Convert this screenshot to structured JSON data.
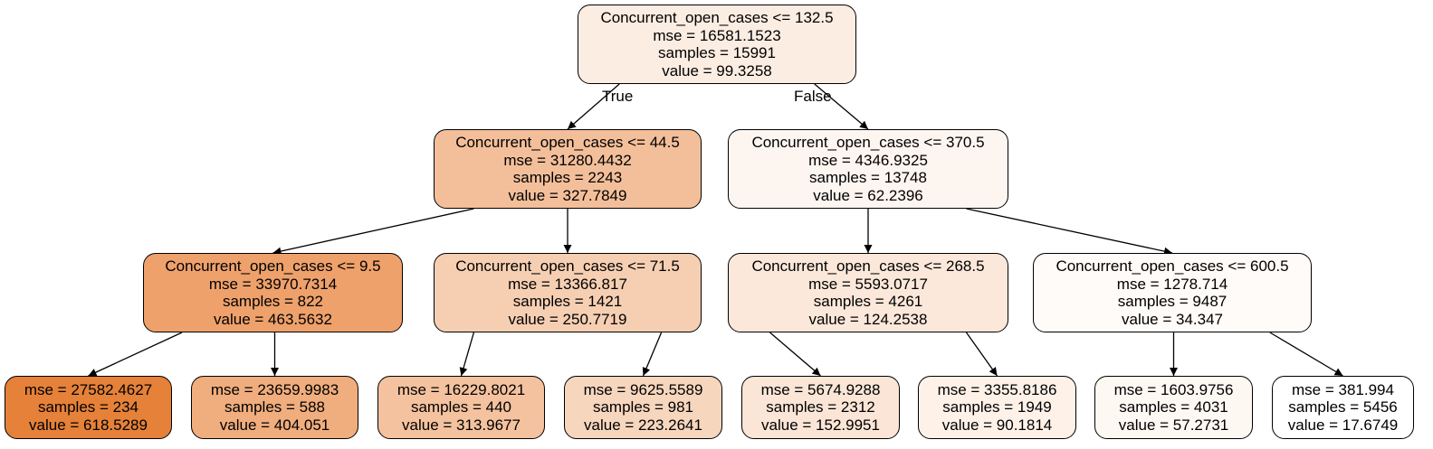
{
  "nodes": [
    {
      "id": "n0",
      "lines": [
        "Concurrent_open_cases <= 132.5",
        "mse = 16581.1523",
        "samples = 15991",
        "value = 99.3258"
      ],
      "fill": "#fcede3"
    },
    {
      "id": "n1",
      "lines": [
        "Concurrent_open_cases <= 44.5",
        "mse = 31280.4432",
        "samples = 2243",
        "value = 327.7849"
      ],
      "fill": "#f3bf9a"
    },
    {
      "id": "n2",
      "lines": [
        "Concurrent_open_cases <= 370.5",
        "mse = 4346.9325",
        "samples = 13748",
        "value = 62.2396"
      ],
      "fill": "#fdf5f0"
    },
    {
      "id": "n3",
      "lines": [
        "Concurrent_open_cases <= 9.5",
        "mse = 33970.7314",
        "samples = 822",
        "value = 463.5632"
      ],
      "fill": "#eea16b"
    },
    {
      "id": "n4",
      "lines": [
        "Concurrent_open_cases <= 71.5",
        "mse = 13366.817",
        "samples = 1421",
        "value = 250.7719"
      ],
      "fill": "#f6cfb3"
    },
    {
      "id": "n5",
      "lines": [
        "Concurrent_open_cases <= 268.5",
        "mse = 5593.0717",
        "samples = 4261",
        "value = 124.2538"
      ],
      "fill": "#fbe8da"
    },
    {
      "id": "n6",
      "lines": [
        "Concurrent_open_cases <= 600.5",
        "mse = 1278.714",
        "samples = 9487",
        "value = 34.347"
      ],
      "fill": "#fefbf8"
    },
    {
      "id": "n7",
      "lines": [
        "mse = 27582.4627",
        "samples = 234",
        "value = 618.5289"
      ],
      "fill": "#e58139"
    },
    {
      "id": "n8",
      "lines": [
        "mse = 23659.9983",
        "samples = 588",
        "value = 404.051"
      ],
      "fill": "#f0ad7d"
    },
    {
      "id": "n9",
      "lines": [
        "mse = 16229.8021",
        "samples = 440",
        "value = 313.9677"
      ],
      "fill": "#f4c29e"
    },
    {
      "id": "n10",
      "lines": [
        "mse = 9625.5589",
        "samples = 981",
        "value = 223.2641"
      ],
      "fill": "#f7d6be"
    },
    {
      "id": "n11",
      "lines": [
        "mse = 5674.9288",
        "samples = 2312",
        "value = 152.9951"
      ],
      "fill": "#fae5d6"
    },
    {
      "id": "n12",
      "lines": [
        "mse = 3355.8186",
        "samples = 1949",
        "value = 90.1814"
      ],
      "fill": "#fdf1e8"
    },
    {
      "id": "n13",
      "lines": [
        "mse = 1603.9756",
        "samples = 4031",
        "value = 57.2731"
      ],
      "fill": "#fef8f3"
    },
    {
      "id": "n14",
      "lines": [
        "mse = 381.994",
        "samples = 5456",
        "value = 17.6749"
      ],
      "fill": "#ffffff"
    }
  ],
  "edges": [
    [
      "n0",
      "n1"
    ],
    [
      "n0",
      "n2"
    ],
    [
      "n1",
      "n3"
    ],
    [
      "n1",
      "n4"
    ],
    [
      "n2",
      "n5"
    ],
    [
      "n2",
      "n6"
    ],
    [
      "n3",
      "n7"
    ],
    [
      "n3",
      "n8"
    ],
    [
      "n4",
      "n9"
    ],
    [
      "n4",
      "n10"
    ],
    [
      "n5",
      "n11"
    ],
    [
      "n5",
      "n12"
    ],
    [
      "n6",
      "n13"
    ],
    [
      "n6",
      "n14"
    ]
  ],
  "edge_labels": {
    "true": "True",
    "false": "False"
  }
}
